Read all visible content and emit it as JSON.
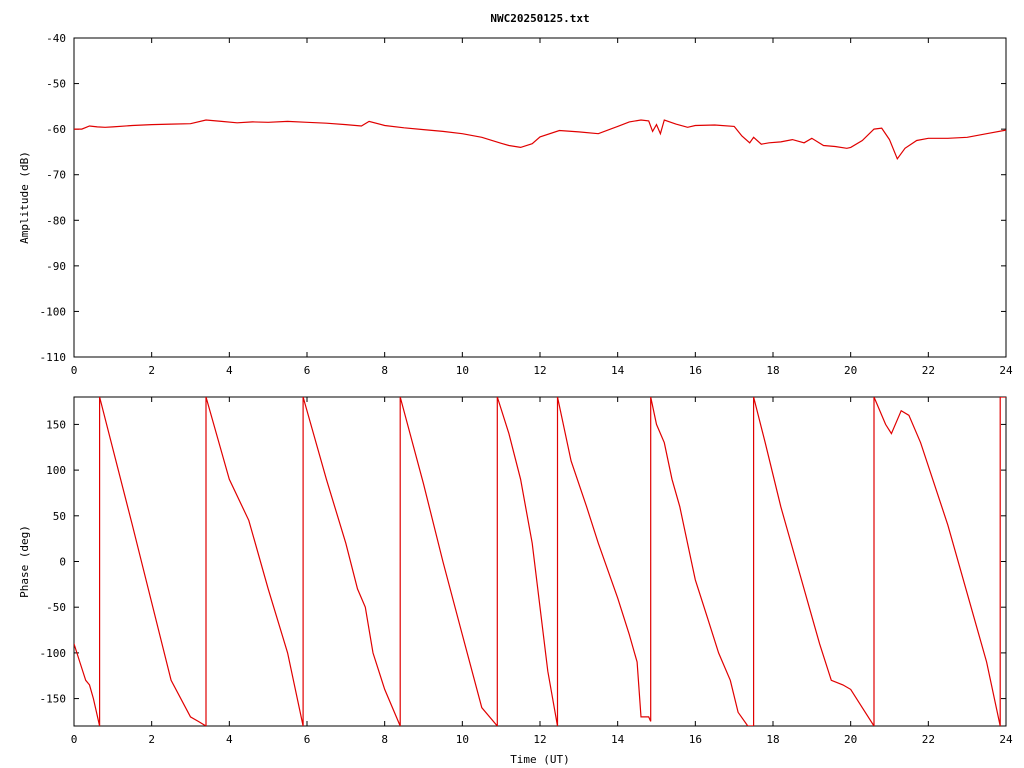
{
  "title": "NWC20250125.txt",
  "chart_data": [
    {
      "type": "line",
      "title": "NWC20250125.txt",
      "xlabel": "",
      "ylabel": "Amplitude (dB)",
      "xlim": [
        0,
        24
      ],
      "ylim": [
        -110,
        -40
      ],
      "xticks": [
        0,
        2,
        4,
        6,
        8,
        10,
        12,
        14,
        16,
        18,
        20,
        22,
        24
      ],
      "yticks": [
        -40,
        -50,
        -60,
        -70,
        -80,
        -90,
        -100,
        -110
      ],
      "ytick_labels": [
        "-40",
        "-50",
        "-60",
        "-70",
        "-80",
        "-90",
        "-100",
        "-110"
      ],
      "grid": false,
      "legend": "none",
      "color": "#e00000",
      "series": [
        {
          "x": [
            0,
            0.2,
            0.4,
            0.6,
            0.8,
            1.0,
            1.5,
            2.0,
            2.5,
            3.0,
            3.4,
            3.8,
            4.2,
            4.6,
            5.0,
            5.5,
            6.0,
            6.5,
            7.0,
            7.4,
            7.6,
            8.0,
            8.5,
            9.0,
            9.5,
            10.0,
            10.5,
            11.0,
            11.2,
            11.5,
            11.8,
            12.0,
            12.5,
            13.0,
            13.5,
            14.0,
            14.3,
            14.6,
            14.8,
            14.9,
            15.0,
            15.1,
            15.2,
            15.5,
            15.8,
            16.0,
            16.5,
            17.0,
            17.2,
            17.4,
            17.5,
            17.7,
            17.9,
            18.2,
            18.5,
            18.8,
            19.0,
            19.3,
            19.6,
            19.9,
            20.0,
            20.3,
            20.6,
            20.8,
            21.0,
            21.2,
            21.4,
            21.7,
            22.0,
            22.5,
            23.0,
            23.5,
            24.0
          ],
          "y": [
            -60.0,
            -60.0,
            -59.3,
            -59.5,
            -59.6,
            -59.5,
            -59.2,
            -59.0,
            -58.9,
            -58.8,
            -58.0,
            -58.3,
            -58.6,
            -58.4,
            -58.5,
            -58.3,
            -58.5,
            -58.7,
            -59.0,
            -59.3,
            -58.3,
            -59.2,
            -59.7,
            -60.1,
            -60.5,
            -61.0,
            -61.8,
            -63.1,
            -63.6,
            -64.0,
            -63.2,
            -61.7,
            -60.3,
            -60.6,
            -61.0,
            -59.4,
            -58.4,
            -58.0,
            -58.2,
            -60.5,
            -59.0,
            -61.0,
            -58.0,
            -58.9,
            -59.6,
            -59.2,
            -59.1,
            -59.4,
            -61.5,
            -63.0,
            -61.8,
            -63.3,
            -63.0,
            -62.8,
            -62.3,
            -63.0,
            -62.0,
            -63.6,
            -63.8,
            -64.2,
            -64.0,
            -62.5,
            -60.0,
            -59.8,
            -62.3,
            -66.5,
            -64.2,
            -62.5,
            -62.0,
            -62.0,
            -61.8,
            -61.0,
            -60.2
          ]
        }
      ]
    },
    {
      "type": "line",
      "title": "",
      "xlabel": "Time (UT)",
      "ylabel": "Phase (deg)",
      "xlim": [
        0,
        24
      ],
      "ylim": [
        -180,
        180
      ],
      "xticks": [
        0,
        2,
        4,
        6,
        8,
        10,
        12,
        14,
        16,
        18,
        20,
        22,
        24
      ],
      "yticks": [
        150,
        100,
        50,
        0,
        -50,
        -100,
        -150
      ],
      "ytick_labels": [
        "150",
        "100",
        "50",
        "0",
        "-50",
        "-100",
        "-150"
      ],
      "grid": false,
      "legend": "none",
      "color": "#e00000",
      "series": [
        {
          "x": [
            0,
            0.15,
            0.3,
            0.4,
            0.5,
            0.66,
            0.66,
            1.5,
            2.5,
            3.0,
            3.2,
            3.4,
            3.4,
            4.0,
            4.5,
            5.0,
            5.5,
            5.9,
            5.9,
            6.5,
            7.0,
            7.3,
            7.5,
            7.7,
            8.0,
            8.4,
            8.4,
            9.0,
            9.5,
            10.0,
            10.5,
            10.9,
            10.9,
            11.2,
            11.5,
            11.8,
            12.0,
            12.2,
            12.45,
            12.45,
            12.8,
            13.2,
            13.5,
            14.0,
            14.3,
            14.5,
            14.6,
            14.8,
            14.85,
            14.85,
            15.0,
            15.2,
            15.4,
            15.6,
            15.75,
            15.9,
            16.0,
            16.3,
            16.6,
            16.9,
            17.1,
            17.35,
            17.5,
            17.5,
            17.8,
            18.2,
            18.6,
            19.0,
            19.2,
            19.5,
            19.8,
            20.0,
            20.3,
            20.6,
            20.6,
            20.9,
            21.05,
            21.3,
            21.5,
            21.8,
            22.5,
            23.5,
            23.85,
            23.85,
            24.0
          ],
          "y": [
            -90,
            -110,
            -130,
            -135,
            -150,
            -180,
            180,
            40,
            -130,
            -170,
            -175,
            -180,
            180,
            90,
            45,
            -30,
            -100,
            -180,
            180,
            90,
            20,
            -30,
            -50,
            -100,
            -140,
            -180,
            180,
            85,
            0,
            -80,
            -160,
            -180,
            180,
            140,
            90,
            20,
            -50,
            -120,
            -180,
            180,
            110,
            60,
            20,
            -40,
            -80,
            -110,
            -170,
            -170,
            -175,
            180,
            150,
            130,
            90,
            60,
            30,
            0,
            -20,
            -60,
            -100,
            -130,
            -165,
            -180,
            -180,
            180,
            130,
            60,
            0,
            -60,
            -90,
            -130,
            -135,
            -140,
            -160,
            -180,
            180,
            150,
            140,
            165,
            160,
            130,
            40,
            -110,
            -180,
            180,
            180
          ]
        }
      ]
    }
  ]
}
